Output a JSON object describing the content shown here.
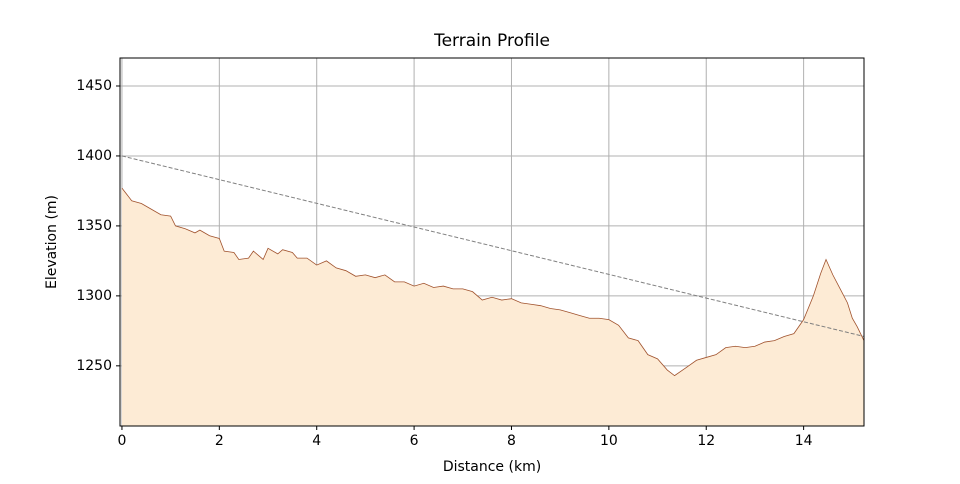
{
  "chart_data": {
    "type": "area",
    "title": "Terrain Profile",
    "xlabel": "Distance (km)",
    "ylabel": "Elevation (m)",
    "xlim": [
      -0.04,
      15.24
    ],
    "ylim": [
      1207,
      1470
    ],
    "xticks": [
      0,
      2,
      4,
      6,
      8,
      10,
      12,
      14
    ],
    "yticks": [
      1250,
      1300,
      1350,
      1400,
      1450
    ],
    "grid": true,
    "series": [
      {
        "color": "#a0522d",
        "fill": "#fdebd5",
        "x": [
          0,
          0.2,
          0.4,
          0.6,
          0.8,
          1.0,
          1.1,
          1.3,
          1.5,
          1.6,
          1.8,
          2.0,
          2.1,
          2.3,
          2.4,
          2.6,
          2.7,
          2.9,
          3.0,
          3.2,
          3.3,
          3.5,
          3.6,
          3.8,
          4.0,
          4.2,
          4.4,
          4.6,
          4.8,
          5.0,
          5.2,
          5.4,
          5.6,
          5.8,
          6.0,
          6.2,
          6.4,
          6.6,
          6.8,
          7.0,
          7.2,
          7.4,
          7.6,
          7.8,
          8.0,
          8.2,
          8.4,
          8.6,
          8.8,
          9.0,
          9.2,
          9.4,
          9.6,
          9.8,
          10.0,
          10.2,
          10.4,
          10.6,
          10.8,
          11.0,
          11.2,
          11.35,
          11.6,
          11.8,
          12.0,
          12.2,
          12.4,
          12.6,
          12.8,
          13.0,
          13.2,
          13.4,
          13.6,
          13.8,
          14.0,
          14.2,
          14.35,
          14.46,
          14.6,
          14.75,
          14.9,
          15.0,
          15.1,
          15.24
        ],
        "values": [
          1377,
          1368,
          1366,
          1362,
          1358,
          1357,
          1350,
          1348,
          1345,
          1347,
          1343,
          1341,
          1332,
          1331,
          1326,
          1327,
          1332,
          1326,
          1334,
          1330,
          1333,
          1331,
          1327,
          1327,
          1322,
          1325,
          1320,
          1318,
          1314,
          1315,
          1313,
          1315,
          1310,
          1310,
          1307,
          1309,
          1306,
          1307,
          1305,
          1305,
          1303,
          1297,
          1299,
          1297,
          1298,
          1295,
          1294,
          1293,
          1291,
          1290,
          1288,
          1286,
          1284,
          1284,
          1283,
          1279,
          1270,
          1268,
          1258,
          1255,
          1247,
          1243,
          1249,
          1254,
          1256,
          1258,
          1263,
          1264,
          1263,
          1264,
          1267,
          1268,
          1271,
          1273,
          1283,
          1300,
          1316,
          1326,
          1315,
          1305,
          1295,
          1284,
          1278,
          1268
        ]
      },
      {
        "color": "#808080",
        "dashed": true,
        "x": [
          0,
          15.24
        ],
        "values": [
          1400,
          1271
        ]
      }
    ]
  }
}
